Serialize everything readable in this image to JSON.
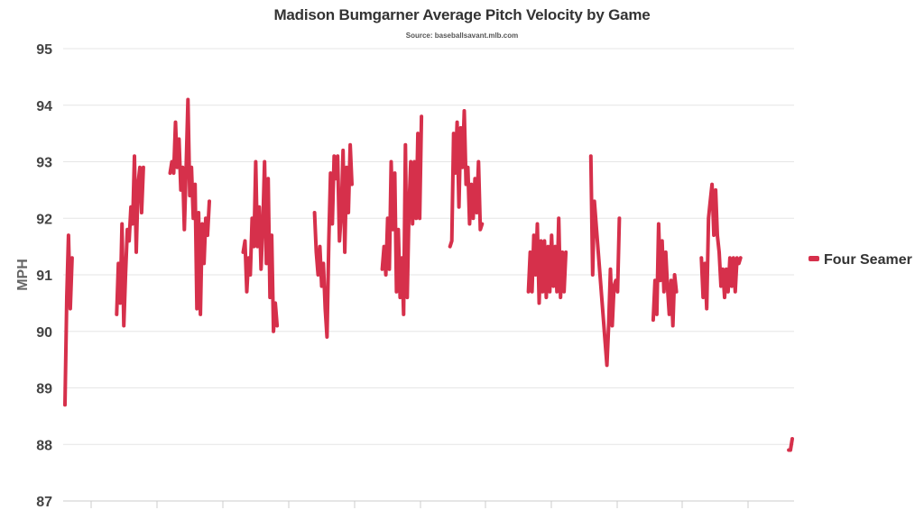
{
  "chart_data": {
    "type": "line",
    "title": "Madison Bumgarner Average Pitch Velocity by Game",
    "subtitle": "Source: baseballsavant.mlb.com",
    "xlabel": "",
    "ylabel": "MPH",
    "ylim": [
      87,
      95
    ],
    "yticks": [
      "95",
      "94",
      "93",
      "92",
      "91",
      "90",
      "89",
      "88",
      "87"
    ],
    "grid": true,
    "legend_position": "right",
    "line_color": "#d6304b",
    "series": [
      {
        "name": "Four Seamer",
        "segments": [
          [
            [
              1,
              88.7
            ],
            [
              2,
              90.6
            ],
            [
              3,
              91.7
            ],
            [
              4,
              90.4
            ],
            [
              5,
              91.3
            ]
          ],
          [
            [
              30,
              90.3
            ],
            [
              31,
              91.2
            ],
            [
              32,
              90.5
            ],
            [
              33,
              91.9
            ],
            [
              34,
              90.1
            ],
            [
              35,
              91.0
            ],
            [
              36,
              91.8
            ],
            [
              37,
              91.6
            ],
            [
              38,
              92.2
            ],
            [
              39,
              91.9
            ],
            [
              40,
              93.1
            ],
            [
              41,
              91.4
            ],
            [
              42,
              92.6
            ],
            [
              43,
              92.9
            ],
            [
              44,
              92.1
            ],
            [
              45,
              92.9
            ]
          ],
          [
            [
              60,
              92.8
            ],
            [
              61,
              93.0
            ],
            [
              62,
              92.8
            ],
            [
              63,
              93.7
            ],
            [
              64,
              92.9
            ],
            [
              65,
              93.4
            ],
            [
              66,
              92.5
            ],
            [
              67,
              92.9
            ],
            [
              68,
              91.8
            ],
            [
              69,
              92.9
            ],
            [
              70,
              94.1
            ],
            [
              71,
              92.4
            ],
            [
              72,
              92.9
            ],
            [
              73,
              92.0
            ],
            [
              74,
              92.6
            ],
            [
              75,
              90.4
            ],
            [
              76,
              92.1
            ],
            [
              77,
              90.3
            ],
            [
              78,
              91.9
            ],
            [
              79,
              91.2
            ],
            [
              80,
              92.0
            ],
            [
              81,
              91.7
            ],
            [
              82,
              92.3
            ]
          ],
          [
            [
              101,
              91.4
            ],
            [
              102,
              91.6
            ],
            [
              103,
              90.7
            ],
            [
              104,
              91.3
            ],
            [
              105,
              91.0
            ],
            [
              106,
              92.0
            ],
            [
              107,
              91.5
            ],
            [
              108,
              93.0
            ],
            [
              109,
              91.5
            ],
            [
              110,
              92.2
            ],
            [
              111,
              91.1
            ],
            [
              112,
              91.9
            ],
            [
              113,
              93.0
            ],
            [
              114,
              91.2
            ],
            [
              115,
              92.7
            ],
            [
              116,
              90.6
            ],
            [
              117,
              91.7
            ],
            [
              118,
              90.0
            ],
            [
              119,
              90.5
            ],
            [
              120,
              90.1
            ]
          ],
          [
            [
              141,
              92.1
            ],
            [
              142,
              91.4
            ],
            [
              143,
              91.0
            ],
            [
              144,
              91.5
            ],
            [
              145,
              90.8
            ],
            [
              146,
              91.2
            ],
            [
              147,
              90.4
            ],
            [
              148,
              89.9
            ],
            [
              149,
              91.6
            ],
            [
              150,
              92.8
            ],
            [
              151,
              91.9
            ],
            [
              152,
              93.1
            ],
            [
              153,
              92.7
            ],
            [
              154,
              93.1
            ],
            [
              155,
              91.6
            ],
            [
              156,
              92.1
            ],
            [
              157,
              93.2
            ],
            [
              158,
              91.4
            ],
            [
              159,
              92.9
            ],
            [
              160,
              92.1
            ],
            [
              161,
              93.3
            ],
            [
              162,
              92.6
            ]
          ],
          [
            [
              179,
              91.1
            ],
            [
              180,
              91.5
            ],
            [
              181,
              91.0
            ],
            [
              182,
              92.0
            ],
            [
              183,
              91.1
            ],
            [
              184,
              93.0
            ],
            [
              185,
              91.8
            ],
            [
              186,
              92.8
            ],
            [
              187,
              90.7
            ],
            [
              188,
              91.8
            ],
            [
              189,
              90.6
            ],
            [
              190,
              91.3
            ],
            [
              191,
              90.3
            ],
            [
              192,
              93.3
            ],
            [
              193,
              90.6
            ],
            [
              194,
              92.2
            ],
            [
              195,
              93.0
            ],
            [
              196,
              91.9
            ],
            [
              197,
              93.0
            ],
            [
              198,
              92.0
            ],
            [
              199,
              93.5
            ],
            [
              200,
              92.0
            ],
            [
              201,
              93.8
            ]
          ],
          [
            [
              217,
              91.5
            ],
            [
              218,
              91.6
            ],
            [
              219,
              93.5
            ],
            [
              220,
              92.8
            ],
            [
              221,
              93.7
            ],
            [
              222,
              92.2
            ],
            [
              223,
              93.6
            ],
            [
              224,
              92.9
            ],
            [
              225,
              93.9
            ],
            [
              226,
              92.6
            ],
            [
              227,
              92.9
            ],
            [
              228,
              91.9
            ],
            [
              229,
              92.6
            ],
            [
              230,
              92.0
            ],
            [
              231,
              92.7
            ],
            [
              232,
              92.1
            ],
            [
              233,
              93.0
            ],
            [
              234,
              91.8
            ],
            [
              235,
              91.9
            ]
          ],
          [
            [
              261,
              90.7
            ],
            [
              262,
              91.4
            ],
            [
              263,
              90.7
            ],
            [
              264,
              91.7
            ],
            [
              265,
              91.0
            ],
            [
              266,
              91.9
            ],
            [
              267,
              90.5
            ],
            [
              268,
              91.6
            ],
            [
              269,
              90.7
            ],
            [
              270,
              91.6
            ],
            [
              271,
              90.6
            ],
            [
              272,
              91.5
            ],
            [
              273,
              90.7
            ],
            [
              274,
              91.7
            ],
            [
              275,
              90.8
            ],
            [
              276,
              91.5
            ],
            [
              277,
              90.7
            ],
            [
              278,
              92.0
            ],
            [
              279,
              90.6
            ],
            [
              280,
              91.4
            ],
            [
              281,
              90.7
            ],
            [
              282,
              91.4
            ]
          ],
          [
            [
              296,
              93.1
            ],
            [
              297,
              91.0
            ],
            [
              298,
              92.3
            ],
            [
              305,
              89.4
            ],
            [
              306,
              90.1
            ],
            [
              307,
              91.1
            ],
            [
              308,
              90.1
            ],
            [
              309,
              90.8
            ],
            [
              310,
              90.9
            ],
            [
              311,
              90.7
            ],
            [
              312,
              92.0
            ]
          ],
          [
            [
              331,
              90.2
            ],
            [
              332,
              90.9
            ],
            [
              333,
              90.3
            ],
            [
              334,
              91.9
            ],
            [
              335,
              90.9
            ],
            [
              336,
              91.6
            ],
            [
              337,
              90.7
            ],
            [
              338,
              91.4
            ],
            [
              339,
              90.8
            ],
            [
              340,
              90.3
            ],
            [
              341,
              90.9
            ],
            [
              342,
              90.1
            ],
            [
              343,
              91.0
            ],
            [
              344,
              90.7
            ]
          ],
          [
            [
              358,
              91.3
            ],
            [
              359,
              90.6
            ],
            [
              360,
              91.2
            ],
            [
              361,
              90.4
            ],
            [
              362,
              92.0
            ],
            [
              363,
              92.3
            ],
            [
              364,
              92.6
            ],
            [
              365,
              91.7
            ],
            [
              366,
              92.5
            ],
            [
              367,
              91.7
            ],
            [
              368,
              91.4
            ],
            [
              369,
              90.8
            ],
            [
              370,
              91.1
            ],
            [
              371,
              90.6
            ],
            [
              372,
              91.1
            ],
            [
              373,
              90.7
            ],
            [
              374,
              91.3
            ],
            [
              375,
              90.8
            ],
            [
              376,
              91.3
            ],
            [
              377,
              90.7
            ],
            [
              378,
              91.3
            ],
            [
              379,
              91.2
            ],
            [
              380,
              91.3
            ]
          ],
          [
            [
              407,
              87.9
            ],
            [
              408,
              87.9
            ],
            [
              409,
              88.1
            ]
          ]
        ]
      }
    ]
  }
}
